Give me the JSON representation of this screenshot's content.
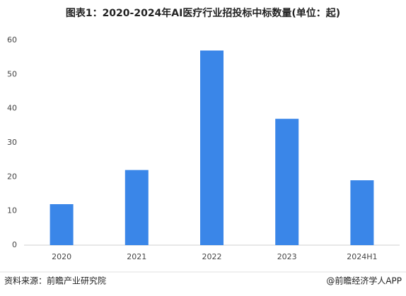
{
  "chart_data": {
    "type": "bar",
    "title": "图表1：2020-2024年AI医疗行业招投标中标数量(单位：起)",
    "categories": [
      "2020",
      "2021",
      "2022",
      "2023",
      "2024H1"
    ],
    "values": [
      12,
      22,
      57,
      37,
      19
    ],
    "color": "#3a86e8",
    "ylim": [
      0,
      60
    ],
    "yticks": [
      0,
      10,
      20,
      30,
      40,
      50,
      60
    ],
    "grid": false,
    "source": "资料来源：前瞻产业研究院",
    "credit": "@前瞻经济学人APP"
  }
}
